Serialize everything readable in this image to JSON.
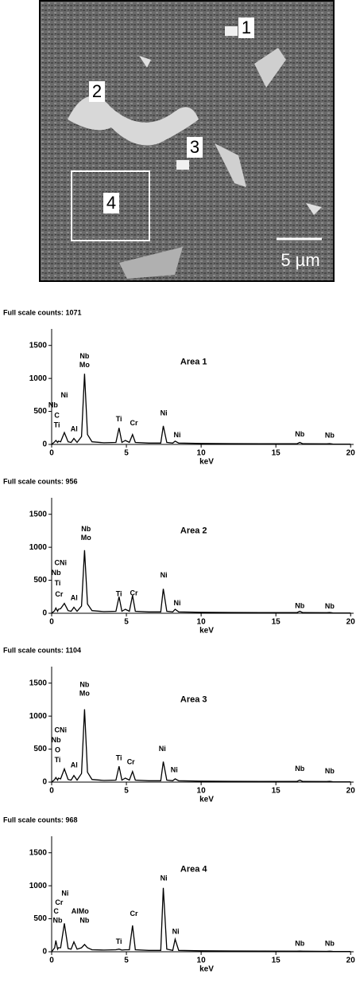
{
  "image": {
    "labels": [
      "1",
      "2",
      "3",
      "4"
    ],
    "scale_label": "5 µm"
  },
  "chart_data": [
    {
      "type": "line",
      "title": "Full scale counts: 1071",
      "label": "Area 1",
      "xlabel": "keV",
      "color": "#000000",
      "xlim": [
        0,
        20.2
      ],
      "xticks": [
        0,
        5,
        10,
        15,
        20
      ],
      "ylim": [
        0,
        1750
      ],
      "yticks": [
        0,
        500,
        1000,
        1500
      ],
      "x": [
        0,
        0.2,
        0.28,
        0.4,
        0.45,
        0.6,
        0.85,
        1.1,
        1.3,
        1.49,
        1.7,
        2.0,
        2.2,
        2.4,
        2.7,
        3.5,
        4.3,
        4.51,
        4.7,
        4.93,
        5.2,
        5.41,
        5.6,
        6.5,
        7.3,
        7.47,
        7.7,
        8.1,
        8.26,
        8.5,
        10,
        12,
        14,
        16.4,
        16.6,
        16.8,
        18.4,
        18.6,
        18.8,
        20
      ],
      "values": [
        0,
        40,
        60,
        30,
        50,
        40,
        180,
        40,
        30,
        90,
        30,
        120,
        1071,
        150,
        40,
        25,
        30,
        250,
        30,
        60,
        30,
        150,
        30,
        20,
        20,
        280,
        30,
        20,
        50,
        20,
        15,
        12,
        10,
        10,
        30,
        10,
        8,
        12,
        6,
        5
      ],
      "annotations": [
        {
          "text": "Ni",
          "x": 0.85,
          "y": 740
        },
        {
          "text": "Nb",
          "x": 0.1,
          "y": 590
        },
        {
          "text": "C",
          "x": 0.35,
          "y": 430
        },
        {
          "text": "Ti",
          "x": 0.35,
          "y": 290
        },
        {
          "text": "Al",
          "x": 1.5,
          "y": 230
        },
        {
          "text": "Nb",
          "x": 2.2,
          "y": 1330
        },
        {
          "text": "Mo",
          "x": 2.2,
          "y": 1200
        },
        {
          "text": "Ti",
          "x": 4.5,
          "y": 380
        },
        {
          "text": "Cr",
          "x": 5.5,
          "y": 320
        },
        {
          "text": "Ni",
          "x": 7.5,
          "y": 470
        },
        {
          "text": "Ni",
          "x": 8.4,
          "y": 140
        },
        {
          "text": "Nb",
          "x": 16.6,
          "y": 150
        },
        {
          "text": "Nb",
          "x": 18.6,
          "y": 130
        }
      ]
    },
    {
      "type": "line",
      "title": "Full scale counts: 956",
      "label": "Area 2",
      "xlabel": "keV",
      "color": "#000000",
      "xlim": [
        0,
        20.2
      ],
      "xticks": [
        0,
        5,
        10,
        15,
        20
      ],
      "ylim": [
        0,
        1750
      ],
      "yticks": [
        0,
        500,
        1000,
        1500
      ],
      "x": [
        0,
        0.2,
        0.28,
        0.4,
        0.45,
        0.6,
        0.85,
        1.1,
        1.3,
        1.49,
        1.7,
        2.0,
        2.2,
        2.4,
        2.7,
        3.5,
        4.3,
        4.51,
        4.7,
        4.93,
        5.2,
        5.41,
        5.6,
        6.5,
        7.3,
        7.47,
        7.7,
        8.1,
        8.26,
        8.5,
        10,
        12,
        14,
        16.4,
        16.6,
        16.8,
        18.4,
        18.6,
        18.8,
        20
      ],
      "values": [
        0,
        40,
        80,
        30,
        60,
        70,
        150,
        40,
        30,
        90,
        30,
        110,
        956,
        140,
        40,
        25,
        30,
        250,
        30,
        60,
        30,
        270,
        30,
        20,
        20,
        370,
        30,
        20,
        60,
        20,
        15,
        12,
        10,
        10,
        30,
        10,
        8,
        12,
        6,
        5
      ],
      "annotations": [
        {
          "text": "CNi",
          "x": 0.6,
          "y": 760
        },
        {
          "text": "Nb",
          "x": 0.3,
          "y": 610
        },
        {
          "text": "Ti",
          "x": 0.4,
          "y": 450
        },
        {
          "text": "Cr",
          "x": 0.5,
          "y": 280
        },
        {
          "text": "Al",
          "x": 1.5,
          "y": 230
        },
        {
          "text": "Nb",
          "x": 2.3,
          "y": 1270
        },
        {
          "text": "Mo",
          "x": 2.3,
          "y": 1140
        },
        {
          "text": "Ti",
          "x": 4.5,
          "y": 290
        },
        {
          "text": "Cr",
          "x": 5.5,
          "y": 300
        },
        {
          "text": "Ni",
          "x": 7.5,
          "y": 570
        },
        {
          "text": "Ni",
          "x": 8.4,
          "y": 150
        },
        {
          "text": "Nb",
          "x": 16.6,
          "y": 110
        },
        {
          "text": "Nb",
          "x": 18.6,
          "y": 100
        }
      ]
    },
    {
      "type": "line",
      "title": "Full scale counts: 1104",
      "label": "Area 3",
      "xlabel": "keV",
      "color": "#000000",
      "xlim": [
        0,
        20.2
      ],
      "xticks": [
        0,
        5,
        10,
        15,
        20
      ],
      "ylim": [
        0,
        1750
      ],
      "yticks": [
        0,
        500,
        1000,
        1500
      ],
      "x": [
        0,
        0.2,
        0.28,
        0.4,
        0.45,
        0.6,
        0.85,
        1.1,
        1.3,
        1.49,
        1.7,
        2.0,
        2.2,
        2.4,
        2.7,
        3.5,
        4.3,
        4.51,
        4.7,
        4.93,
        5.2,
        5.41,
        5.6,
        6.5,
        7.3,
        7.47,
        7.7,
        8.1,
        8.26,
        8.5,
        10,
        12,
        14,
        16.4,
        16.6,
        16.8,
        18.4,
        18.6,
        18.8,
        20
      ],
      "values": [
        0,
        40,
        70,
        30,
        60,
        50,
        200,
        40,
        30,
        100,
        30,
        130,
        1104,
        150,
        40,
        25,
        30,
        240,
        30,
        60,
        30,
        160,
        30,
        20,
        20,
        310,
        30,
        20,
        50,
        20,
        15,
        12,
        10,
        10,
        30,
        10,
        8,
        12,
        6,
        5
      ],
      "annotations": [
        {
          "text": "CNi",
          "x": 0.6,
          "y": 780
        },
        {
          "text": "Nb",
          "x": 0.3,
          "y": 630
        },
        {
          "text": "O",
          "x": 0.4,
          "y": 480
        },
        {
          "text": "Ti",
          "x": 0.4,
          "y": 330
        },
        {
          "text": "Al",
          "x": 1.5,
          "y": 250
        },
        {
          "text": "Nb",
          "x": 2.2,
          "y": 1470
        },
        {
          "text": "Mo",
          "x": 2.2,
          "y": 1340
        },
        {
          "text": "Ti",
          "x": 4.5,
          "y": 360
        },
        {
          "text": "Cr",
          "x": 5.3,
          "y": 300
        },
        {
          "text": "Ni",
          "x": 7.4,
          "y": 500
        },
        {
          "text": "Ni",
          "x": 8.2,
          "y": 180
        },
        {
          "text": "Nb",
          "x": 16.6,
          "y": 200
        },
        {
          "text": "Nb",
          "x": 18.6,
          "y": 160
        }
      ]
    },
    {
      "type": "line",
      "title": "Full scale counts: 968",
      "label": "Area 4",
      "xlabel": "keV",
      "color": "#000000",
      "xlim": [
        0,
        20.2
      ],
      "xticks": [
        0,
        5,
        10,
        15,
        20
      ],
      "ylim": [
        0,
        1750
      ],
      "yticks": [
        0,
        500,
        1000,
        1500
      ],
      "x": [
        0,
        0.2,
        0.28,
        0.4,
        0.45,
        0.6,
        0.85,
        1.1,
        1.3,
        1.49,
        1.7,
        2.0,
        2.2,
        2.4,
        2.7,
        3.5,
        4.3,
        4.51,
        4.7,
        4.93,
        5.2,
        5.41,
        5.6,
        6.5,
        7.3,
        7.47,
        7.7,
        8.1,
        8.26,
        8.5,
        10,
        12,
        14,
        16.4,
        16.6,
        16.8,
        18.4,
        18.6,
        18.8,
        20
      ],
      "values": [
        0,
        60,
        170,
        40,
        60,
        60,
        430,
        50,
        40,
        150,
        40,
        60,
        110,
        60,
        30,
        25,
        30,
        40,
        25,
        30,
        30,
        400,
        30,
        20,
        20,
        968,
        40,
        20,
        190,
        20,
        15,
        12,
        10,
        8,
        10,
        8,
        6,
        8,
        6,
        5
      ],
      "annotations": [
        {
          "text": "Ni",
          "x": 0.9,
          "y": 880
        },
        {
          "text": "Cr",
          "x": 0.5,
          "y": 740
        },
        {
          "text": "C",
          "x": 0.3,
          "y": 610
        },
        {
          "text": "Nb",
          "x": 0.4,
          "y": 470
        },
        {
          "text": "AlMo",
          "x": 1.9,
          "y": 610
        },
        {
          "text": "Nb",
          "x": 2.2,
          "y": 470
        },
        {
          "text": "Ti",
          "x": 4.5,
          "y": 150
        },
        {
          "text": "Cr",
          "x": 5.5,
          "y": 570
        },
        {
          "text": "Ni",
          "x": 7.5,
          "y": 1110
        },
        {
          "text": "Ni",
          "x": 8.3,
          "y": 300
        },
        {
          "text": "Nb",
          "x": 16.6,
          "y": 120
        },
        {
          "text": "Nb",
          "x": 18.6,
          "y": 120
        }
      ]
    }
  ]
}
